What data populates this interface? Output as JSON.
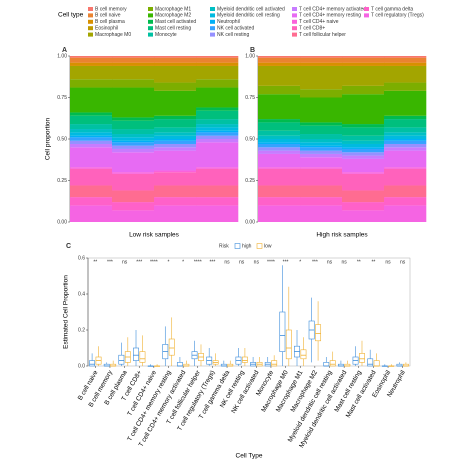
{
  "chart_data": [
    {
      "type": "stacked",
      "panel_label": "A",
      "legend_title": "Cell type",
      "y_label": "Cell proportion",
      "x_label": "Low risk samples",
      "categories": [
        null,
        null,
        null,
        null
      ],
      "ylim": [
        0,
        1
      ],
      "yticks": [
        {
          "value": 0,
          "label": "0.00"
        },
        {
          "value": 0.25,
          "label": "0.25"
        },
        {
          "value": 0.5,
          "label": "0.50"
        },
        {
          "value": 0.75,
          "label": "0.75"
        },
        {
          "value": 1,
          "label": "1.00"
        }
      ],
      "series": [
        {
          "name": "B cell memory",
          "color": "#F8766D",
          "values": [
            0.01,
            0.01,
            0.01,
            0.01
          ]
        },
        {
          "name": "B cell naive",
          "color": "#EA8331",
          "values": [
            0.03,
            0.03,
            0.03,
            0.03
          ]
        },
        {
          "name": "B cell plasma",
          "color": "#D89000",
          "values": [
            0.02,
            0.02,
            0.02,
            0.02
          ]
        },
        {
          "name": "Eosinophil",
          "color": "#C09B00",
          "values": [
            0,
            0,
            0,
            0
          ]
        },
        {
          "name": "Macrophage M0",
          "color": "#A3A500",
          "values": [
            0.08,
            0.08,
            0.1,
            0.08
          ]
        },
        {
          "name": "Macrophage M1",
          "color": "#7CAE00",
          "values": [
            0.05,
            0.05,
            0.05,
            0.05
          ]
        },
        {
          "name": "Macrophage M2",
          "color": "#39B600",
          "values": [
            0.15,
            0.18,
            0.15,
            0.12
          ]
        },
        {
          "name": "Mast cell activated",
          "color": "#00BB4E",
          "values": [
            0.02,
            0.02,
            0.02,
            0.02
          ]
        },
        {
          "name": "Mast cell resting",
          "color": "#00BF7D",
          "values": [
            0.05,
            0.05,
            0.05,
            0.05
          ]
        },
        {
          "name": "Monocyte",
          "color": "#00C1A3",
          "values": [
            0.03,
            0.03,
            0.03,
            0.03
          ]
        },
        {
          "name": "Myeloid dendritic cell activated",
          "color": "#00BFC4",
          "values": [
            0.02,
            0.02,
            0.02,
            0.02
          ]
        },
        {
          "name": "Myeloid dendritic cell resting",
          "color": "#00BAE0",
          "values": [
            0.02,
            0.02,
            0.02,
            0.02
          ]
        },
        {
          "name": "Neutrophil",
          "color": "#00B0F6",
          "values": [
            0.01,
            0.01,
            0.01,
            0.01
          ]
        },
        {
          "name": "NK cell activated",
          "color": "#35A2FF",
          "values": [
            0.02,
            0.02,
            0.02,
            0.02
          ]
        },
        {
          "name": "NK cell resting",
          "color": "#9590FF",
          "values": [
            0.02,
            0.02,
            0.02,
            0.02
          ]
        },
        {
          "name": "T cell CD4+ memory activated",
          "color": "#C77CFF",
          "values": [
            0.02,
            0.02,
            0.02,
            0.02
          ]
        },
        {
          "name": "T cell CD4+ memory resting",
          "color": "#E76BF3",
          "values": [
            0.12,
            0.12,
            0.12,
            0.15
          ]
        },
        {
          "name": "T cell CD4+ naive",
          "color": "#FA62DB",
          "values": [
            0.01,
            0.01,
            0.01,
            0.01
          ]
        },
        {
          "name": "T cell CD8+",
          "color": "#FF62BC",
          "values": [
            0.1,
            0.1,
            0.08,
            0.1
          ]
        },
        {
          "name": "T cell follicular helper",
          "color": "#FF6C91",
          "values": [
            0.07,
            0.07,
            0.07,
            0.07
          ]
        },
        {
          "name": "T cell gamma delta",
          "color": "#FF61C9",
          "values": [
            0.05,
            0.05,
            0.05,
            0.05
          ]
        },
        {
          "name": "T cell regulatory (Tregs)",
          "color": "#F564E3",
          "values": [
            0.1,
            0.07,
            0.1,
            0.1
          ]
        }
      ]
    },
    {
      "type": "stacked",
      "panel_label": "B",
      "x_label": "High risk samples",
      "categories": [
        null,
        null,
        null,
        null
      ],
      "ylim": [
        0,
        1
      ],
      "yticks": [
        {
          "value": 0,
          "label": "0.00"
        },
        {
          "value": 0.25,
          "label": "0.25"
        },
        {
          "value": 0.5,
          "label": "0.50"
        },
        {
          "value": 0.75,
          "label": "0.75"
        },
        {
          "value": 1,
          "label": "1.00"
        }
      ],
      "series": [
        {
          "values": [
            0.01,
            0.01,
            0.01,
            0.01
          ]
        },
        {
          "values": [
            0.03,
            0.03,
            0.03,
            0.03
          ]
        },
        {
          "values": [
            0.02,
            0.02,
            0.02,
            0.02
          ]
        },
        {
          "values": [
            0,
            0,
            0,
            0
          ]
        },
        {
          "values": [
            0.12,
            0.14,
            0.12,
            0.1
          ]
        },
        {
          "values": [
            0.05,
            0.05,
            0.05,
            0.05
          ]
        },
        {
          "values": [
            0.15,
            0.15,
            0.18,
            0.15
          ]
        },
        {
          "values": [
            0.02,
            0.02,
            0.02,
            0.02
          ]
        },
        {
          "values": [
            0.05,
            0.05,
            0.05,
            0.05
          ]
        },
        {
          "values": [
            0.03,
            0.03,
            0.03,
            0.03
          ]
        },
        {
          "values": [
            0.02,
            0.02,
            0.02,
            0.02
          ]
        },
        {
          "values": [
            0.02,
            0.02,
            0.02,
            0.02
          ]
        },
        {
          "values": [
            0.01,
            0.01,
            0.01,
            0.01
          ]
        },
        {
          "values": [
            0.02,
            0.02,
            0.02,
            0.02
          ]
        },
        {
          "values": [
            0.02,
            0.02,
            0.02,
            0.02
          ]
        },
        {
          "values": [
            0.02,
            0.02,
            0.02,
            0.02
          ]
        },
        {
          "values": [
            0.08,
            0.06,
            0.08,
            0.1
          ]
        },
        {
          "values": [
            0.01,
            0.01,
            0.01,
            0.01
          ]
        },
        {
          "values": [
            0.1,
            0.1,
            0.1,
            0.1
          ]
        },
        {
          "values": [
            0.07,
            0.07,
            0.07,
            0.07
          ]
        },
        {
          "values": [
            0.05,
            0.05,
            0.05,
            0.05
          ]
        },
        {
          "values": [
            0.1,
            0.1,
            0.07,
            0.1
          ]
        }
      ]
    },
    {
      "type": "box",
      "panel_label": "C",
      "legend_title": "Risk",
      "y_label": "Estimated Cell Proportion",
      "x_label": "Cell Type",
      "categories": [
        "B cell naive",
        "B cell memory",
        "B cell plasma",
        "T cell CD8+",
        "T cell CD4+ naive",
        "T cell CD4+ memory resting",
        "T cell CD4+ memory activated",
        "T cell follicular helper",
        "T cell regulatory (Tregs)",
        "T cell gamma delta",
        "NK cell resting",
        "NK cell activated",
        "Monocyte",
        "Macrophage M0",
        "Macrophage M1",
        "Macrophage M2",
        "Myeloid dendritic cell resting",
        "Myeloid dendritic cell activated",
        "Mast cell resting",
        "Mast cell activated",
        "Eosinophil",
        "Neutrophil"
      ],
      "annotations": [
        "**",
        "***",
        "ns",
        "***",
        "****",
        "*",
        "*",
        "****",
        "***",
        "ns",
        "ns",
        "ns",
        "****",
        "***",
        "*",
        "***",
        "ns",
        "ns",
        "**",
        "**",
        "ns",
        "ns"
      ],
      "ylim": [
        0,
        0.6
      ],
      "yticks": [
        {
          "value": 0,
          "label": "0.0"
        },
        {
          "value": 0.2,
          "label": "0.2"
        },
        {
          "value": 0.4,
          "label": "0.4"
        },
        {
          "value": 0.6,
          "label": "0.6"
        }
      ],
      "series": [
        {
          "name": "high",
          "color": "#3C8DDB",
          "values": [
            [
              0,
              0,
              0.01,
              0.03,
              0.07
            ],
            [
              0,
              0,
              0,
              0.01,
              0.02
            ],
            [
              0,
              0.01,
              0.03,
              0.06,
              0.13
            ],
            [
              0,
              0.03,
              0.06,
              0.1,
              0.2
            ],
            [
              0,
              0,
              0,
              0,
              0.01
            ],
            [
              0,
              0.04,
              0.08,
              0.12,
              0.22
            ],
            [
              0,
              0,
              0,
              0.02,
              0.05
            ],
            [
              0,
              0.04,
              0.06,
              0.08,
              0.14
            ],
            [
              0,
              0.01,
              0.03,
              0.05,
              0.1
            ],
            [
              0,
              0,
              0,
              0.01,
              0.03
            ],
            [
              0,
              0.01,
              0.03,
              0.05,
              0.1
            ],
            [
              0,
              0,
              0.01,
              0.02,
              0.05
            ],
            [
              0,
              0,
              0.01,
              0.02,
              0.05
            ],
            [
              0,
              0.08,
              0.17,
              0.3,
              0.56
            ],
            [
              0,
              0.05,
              0.08,
              0.11,
              0.2
            ],
            [
              0.02,
              0.15,
              0.2,
              0.25,
              0.38
            ],
            [
              0,
              0,
              0,
              0.02,
              0.05
            ],
            [
              0,
              0,
              0,
              0.01,
              0.03
            ],
            [
              0,
              0.01,
              0.03,
              0.05,
              0.11
            ],
            [
              0,
              0,
              0.01,
              0.04,
              0.09
            ],
            [
              0,
              0,
              0,
              0,
              0.01
            ],
            [
              0,
              0,
              0,
              0.01,
              0.02
            ]
          ]
        },
        {
          "name": "low",
          "color": "#F0B030",
          "values": [
            [
              0,
              0.01,
              0.03,
              0.05,
              0.11
            ],
            [
              0,
              0,
              0,
              0.01,
              0.03
            ],
            [
              0,
              0.02,
              0.05,
              0.08,
              0.16
            ],
            [
              0,
              0.02,
              0.04,
              0.08,
              0.17
            ],
            [
              0,
              0,
              0,
              0,
              0.01
            ],
            [
              0,
              0.06,
              0.1,
              0.15,
              0.27
            ],
            [
              0,
              0,
              0,
              0.01,
              0.03
            ],
            [
              0,
              0.03,
              0.05,
              0.07,
              0.12
            ],
            [
              0,
              0.01,
              0.02,
              0.03,
              0.07
            ],
            [
              0,
              0,
              0,
              0.01,
              0.03
            ],
            [
              0,
              0.02,
              0.03,
              0.05,
              0.1
            ],
            [
              0,
              0,
              0.01,
              0.02,
              0.05
            ],
            [
              0,
              0,
              0.01,
              0.03,
              0.06
            ],
            [
              0,
              0.04,
              0.1,
              0.2,
              0.44
            ],
            [
              0,
              0.04,
              0.06,
              0.09,
              0.16
            ],
            [
              0.03,
              0.14,
              0.18,
              0.23,
              0.36
            ],
            [
              0,
              0,
              0.01,
              0.03,
              0.08
            ],
            [
              0,
              0,
              0,
              0.01,
              0.03
            ],
            [
              0,
              0.02,
              0.04,
              0.07,
              0.14
            ],
            [
              0,
              0,
              0,
              0.03,
              0.07
            ],
            [
              0,
              0,
              0,
              0,
              0.01
            ],
            [
              0,
              0,
              0,
              0.01,
              0.02
            ]
          ]
        }
      ]
    }
  ]
}
